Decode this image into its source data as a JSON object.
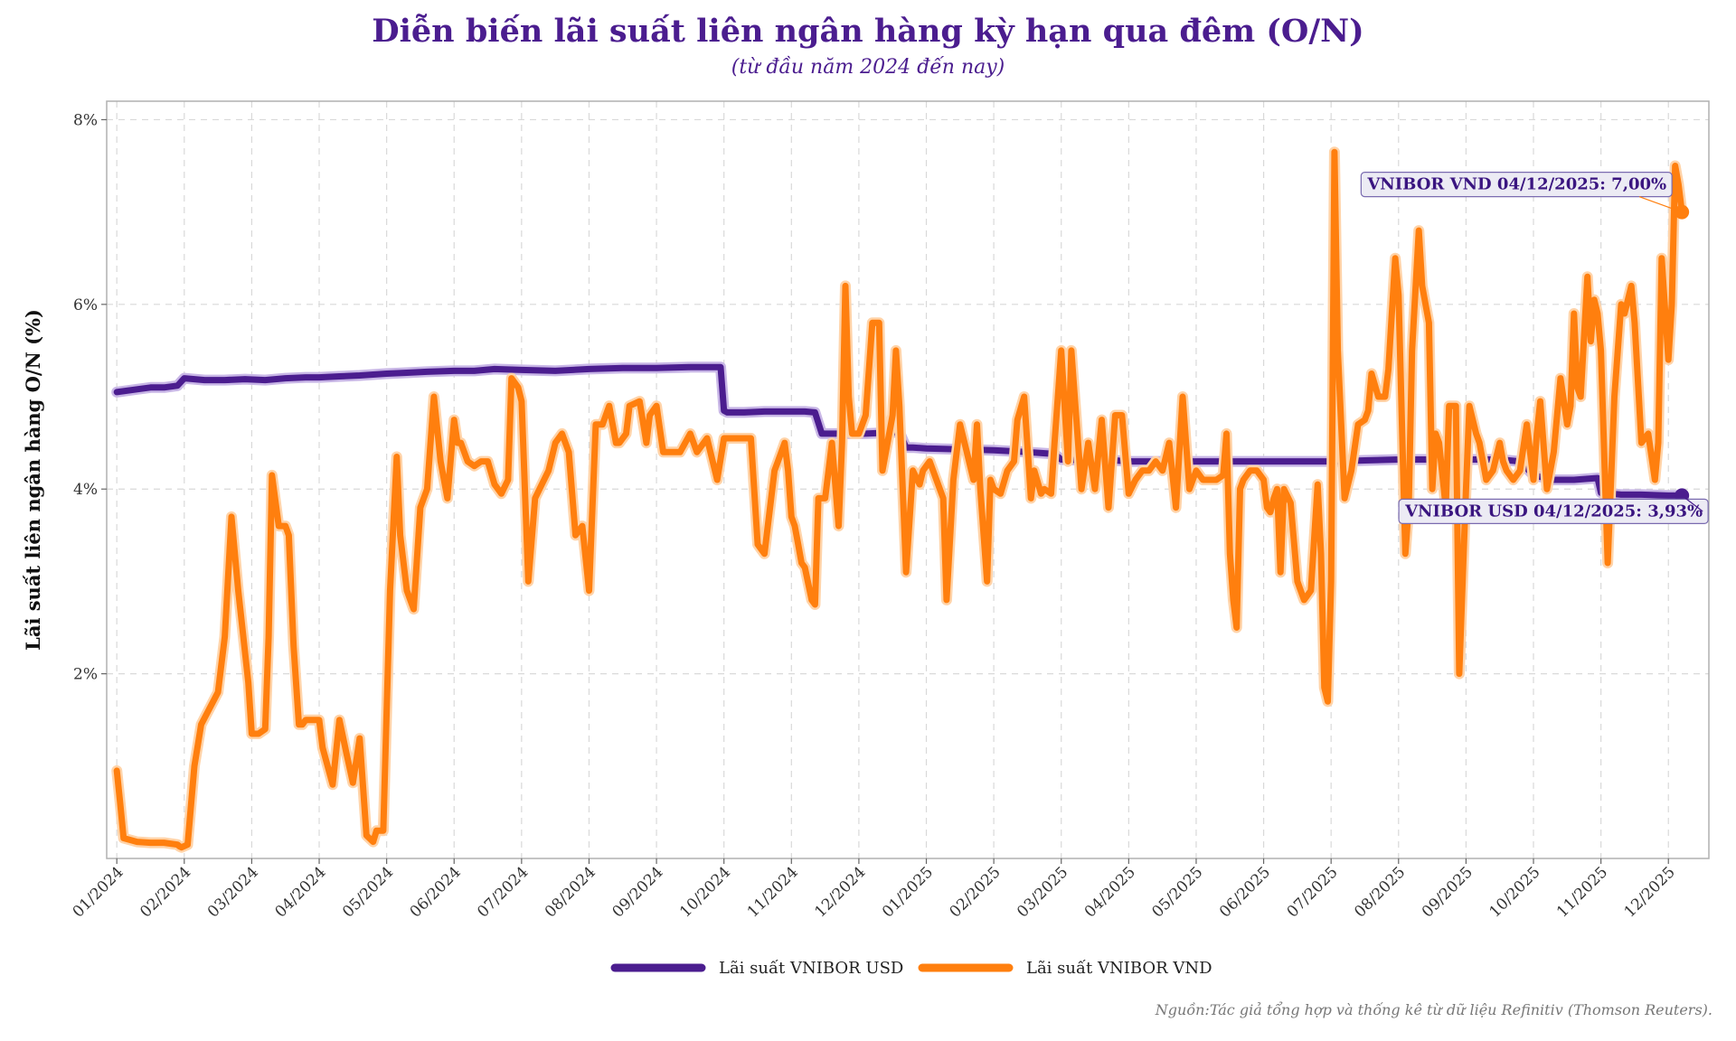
{
  "title": "Diễn biến lãi suất liên ngân hàng kỳ hạn qua đêm (O/N)",
  "subtitle": "(từ đầu năm 2024 đến nay)",
  "source": "Nguồn:Tác giả tổng hợp và thống kê từ dữ liệu Refinitiv (Thomson Reuters).",
  "colors": {
    "usd": "#4b1d8f",
    "vnd": "#ff7f0e",
    "usd_halo": "#c8b6e6",
    "vnd_halo": "#ffd3a8",
    "grid": "#d9d9d9",
    "frame": "#b0b0b0"
  },
  "chart_data": {
    "type": "line",
    "title": "Diễn biến lãi suất liên ngân hàng kỳ hạn qua đêm (O/N)",
    "xlabel": "",
    "ylabel": "Lãi suất liên ngân hàng O/N (%)",
    "ylim": [
      0,
      8.2
    ],
    "yticks": [
      2,
      4,
      6,
      8
    ],
    "ytick_labels": [
      "2%",
      "4%",
      "6%",
      "8%"
    ],
    "x_unit": "month index from 01/2024 (0 = 01/2024)",
    "xlim": [
      -0.15,
      23.6
    ],
    "xticks": [
      0,
      1,
      2,
      3,
      4,
      5,
      6,
      7,
      8,
      9,
      10,
      11,
      12,
      13,
      14,
      15,
      16,
      17,
      18,
      19,
      20,
      21,
      22,
      23
    ],
    "xtick_labels": [
      "01/2024",
      "02/2024",
      "03/2024",
      "04/2024",
      "05/2024",
      "06/2024",
      "07/2024",
      "08/2024",
      "09/2024",
      "10/2024",
      "11/2024",
      "12/2024",
      "01/2025",
      "02/2025",
      "03/2025",
      "04/2025",
      "05/2025",
      "06/2025",
      "07/2025",
      "08/2025",
      "09/2025",
      "10/2025",
      "11/2025",
      "12/2025"
    ],
    "grid": true,
    "legend_position": "bottom-center",
    "series": [
      {
        "name": "Lãi suất VNIBOR USD",
        "color": "#4b1d8f",
        "x": [
          0,
          0.3,
          0.5,
          0.7,
          0.9,
          1.0,
          1.3,
          1.6,
          1.9,
          2.2,
          2.5,
          2.8,
          3.0,
          3.3,
          3.6,
          4.0,
          4.3,
          4.6,
          5.0,
          5.3,
          5.6,
          6.0,
          6.5,
          7.0,
          7.5,
          8.0,
          8.5,
          8.95,
          9.0,
          9.05,
          9.3,
          9.6,
          9.9,
          10.2,
          10.35,
          10.45,
          10.5,
          10.8,
          11.1,
          11.4,
          11.6,
          11.7,
          11.8,
          12.0,
          12.5,
          13.0,
          13.5,
          13.9,
          14.0,
          14.4,
          14.8,
          15.0,
          15.4,
          15.8,
          16.2,
          16.6,
          17.0,
          17.5,
          18.0,
          18.5,
          19.0,
          19.5,
          20.0,
          20.5,
          20.8,
          21.0,
          21.3,
          21.6,
          21.95,
          22.0,
          22.3,
          22.6,
          23.0,
          23.2
        ],
        "values": [
          5.05,
          5.08,
          5.1,
          5.1,
          5.12,
          5.2,
          5.18,
          5.18,
          5.19,
          5.18,
          5.2,
          5.21,
          5.21,
          5.22,
          5.23,
          5.25,
          5.26,
          5.27,
          5.28,
          5.28,
          5.3,
          5.29,
          5.28,
          5.3,
          5.31,
          5.31,
          5.32,
          5.32,
          4.85,
          4.83,
          4.83,
          4.84,
          4.84,
          4.84,
          4.83,
          4.6,
          4.6,
          4.6,
          4.6,
          4.61,
          4.62,
          4.45,
          4.45,
          4.44,
          4.43,
          4.42,
          4.4,
          4.38,
          4.32,
          4.31,
          4.31,
          4.3,
          4.3,
          4.3,
          4.3,
          4.3,
          4.3,
          4.3,
          4.3,
          4.31,
          4.32,
          4.32,
          4.32,
          4.32,
          4.3,
          4.15,
          4.1,
          4.1,
          4.12,
          3.96,
          3.94,
          3.94,
          3.93,
          3.93
        ]
      },
      {
        "name": "Lãi suất VNIBOR VND",
        "color": "#ff7f0e",
        "x": [
          0,
          0.05,
          0.1,
          0.3,
          0.5,
          0.7,
          0.9,
          0.93,
          0.96,
          1.05,
          1.15,
          1.25,
          1.5,
          1.6,
          1.7,
          1.8,
          1.95,
          2.0,
          2.1,
          2.2,
          2.25,
          2.3,
          2.4,
          2.5,
          2.55,
          2.62,
          2.7,
          2.75,
          2.8,
          2.9,
          3.0,
          3.05,
          3.2,
          3.3,
          3.4,
          3.5,
          3.6,
          3.7,
          3.8,
          3.85,
          3.95,
          4.05,
          4.15,
          4.2,
          4.3,
          4.4,
          4.5,
          4.6,
          4.7,
          4.8,
          4.9,
          5.0,
          5.05,
          5.1,
          5.2,
          5.3,
          5.4,
          5.5,
          5.6,
          5.7,
          5.8,
          5.85,
          5.95,
          6.0,
          6.1,
          6.2,
          6.3,
          6.4,
          6.5,
          6.6,
          6.7,
          6.8,
          6.9,
          7.0,
          7.1,
          7.2,
          7.3,
          7.4,
          7.45,
          7.55,
          7.6,
          7.75,
          7.85,
          7.9,
          8.0,
          8.1,
          8.25,
          8.35,
          8.5,
          8.6,
          8.75,
          8.9,
          9.0,
          9.1,
          9.3,
          9.4,
          9.5,
          9.6,
          9.65,
          9.75,
          9.8,
          9.9,
          9.95,
          10.0,
          10.05,
          10.1,
          10.15,
          10.2,
          10.3,
          10.35,
          10.4,
          10.5,
          10.6,
          10.7,
          10.75,
          10.8,
          10.85,
          10.9,
          10.95,
          11.0,
          11.1,
          11.2,
          11.3,
          11.35,
          11.5,
          11.55,
          11.6,
          11.7,
          11.8,
          11.9,
          11.95,
          12.05,
          12.15,
          12.25,
          12.3,
          12.4,
          12.5,
          12.6,
          12.7,
          12.75,
          12.8,
          12.9,
          12.95,
          13.0,
          13.1,
          13.2,
          13.3,
          13.35,
          13.45,
          13.55,
          13.6,
          13.7,
          13.75,
          13.85,
          13.9,
          14.0,
          14.1,
          14.15,
          14.3,
          14.4,
          14.5,
          14.6,
          14.7,
          14.8,
          14.9,
          15.0,
          15.1,
          15.2,
          15.3,
          15.4,
          15.5,
          15.6,
          15.7,
          15.8,
          15.9,
          16.0,
          16.1,
          16.2,
          16.3,
          16.4,
          16.45,
          16.5,
          16.55,
          16.6,
          16.65,
          16.7,
          16.8,
          16.9,
          17.0,
          17.05,
          17.1,
          17.15,
          17.2,
          17.25,
          17.3,
          17.4,
          17.5,
          17.6,
          17.7,
          17.8,
          17.85,
          17.9,
          17.95,
          18.0,
          18.05,
          18.1,
          18.2,
          18.3,
          18.4,
          18.5,
          18.55,
          18.6,
          18.7,
          18.8,
          18.85,
          18.95,
          19.0,
          19.1,
          19.15,
          19.2,
          19.3,
          19.35,
          19.45,
          19.5,
          19.55,
          19.6,
          19.7,
          19.75,
          19.85,
          19.9,
          20.0,
          20.05,
          20.15,
          20.2,
          20.3,
          20.4,
          20.5,
          20.55,
          20.6,
          20.7,
          20.8,
          20.9,
          21.0,
          21.05,
          21.1,
          21.2,
          21.3,
          21.4,
          21.5,
          21.55,
          21.6,
          21.65,
          21.7,
          21.8,
          21.85,
          21.9,
          21.95,
          22.0,
          22.1,
          22.2,
          22.3,
          22.35,
          22.45,
          22.5,
          22.6,
          22.7,
          22.8,
          22.85,
          22.9,
          23.0,
          23.05,
          23.1,
          23.15,
          23.2
        ],
        "values": [
          0.95,
          0.6,
          0.22,
          0.18,
          0.17,
          0.17,
          0.15,
          0.13,
          0.12,
          0.15,
          1.0,
          1.45,
          1.8,
          2.4,
          3.7,
          2.9,
          1.9,
          1.35,
          1.35,
          1.4,
          2.4,
          4.15,
          3.6,
          3.6,
          3.5,
          2.3,
          1.45,
          1.45,
          1.5,
          1.5,
          1.5,
          1.2,
          0.8,
          1.5,
          1.15,
          0.82,
          1.3,
          0.25,
          0.18,
          0.3,
          0.3,
          2.9,
          4.35,
          3.5,
          2.9,
          2.7,
          3.8,
          4.0,
          5.0,
          4.3,
          3.9,
          4.75,
          4.5,
          4.5,
          4.3,
          4.25,
          4.3,
          4.3,
          4.05,
          3.95,
          4.1,
          5.2,
          5.1,
          4.95,
          3.0,
          3.9,
          4.05,
          4.2,
          4.5,
          4.6,
          4.4,
          3.5,
          3.6,
          2.9,
          4.7,
          4.7,
          4.9,
          4.5,
          4.5,
          4.6,
          4.9,
          4.95,
          4.5,
          4.8,
          4.9,
          4.4,
          4.4,
          4.4,
          4.6,
          4.4,
          4.55,
          4.1,
          4.55,
          4.55,
          4.55,
          4.55,
          3.4,
          3.3,
          3.6,
          4.2,
          4.3,
          4.5,
          4.2,
          3.7,
          3.6,
          3.4,
          3.2,
          3.15,
          2.8,
          2.75,
          3.9,
          3.9,
          4.5,
          3.6,
          4.5,
          6.2,
          5.0,
          4.6,
          4.6,
          4.6,
          4.8,
          5.8,
          5.8,
          4.2,
          4.8,
          5.5,
          4.9,
          3.1,
          4.2,
          4.05,
          4.2,
          4.3,
          4.1,
          3.9,
          2.8,
          4.1,
          4.7,
          4.4,
          4.1,
          4.7,
          4.0,
          3.0,
          4.1,
          4.0,
          3.95,
          4.2,
          4.3,
          4.75,
          5.0,
          3.9,
          4.2,
          3.95,
          4.0,
          3.95,
          4.5,
          5.5,
          4.3,
          5.5,
          4.0,
          4.5,
          4.0,
          4.75,
          3.8,
          4.8,
          4.8,
          3.95,
          4.1,
          4.2,
          4.2,
          4.3,
          4.2,
          4.5,
          3.8,
          5.0,
          4.0,
          4.2,
          4.1,
          4.1,
          4.1,
          4.15,
          4.6,
          3.3,
          2.8,
          2.5,
          4.0,
          4.1,
          4.2,
          4.2,
          4.1,
          3.8,
          3.75,
          3.9,
          4.0,
          3.1,
          4.0,
          3.85,
          3.0,
          2.8,
          2.9,
          4.05,
          3.3,
          1.85,
          1.7,
          3.0,
          7.65,
          5.5,
          3.9,
          4.2,
          4.7,
          4.75,
          4.85,
          5.25,
          5.0,
          5.0,
          5.3,
          6.5,
          6.1,
          3.3,
          3.8,
          5.5,
          6.8,
          6.2,
          5.8,
          4.0,
          4.6,
          4.5,
          3.8,
          4.9,
          4.9,
          2.0,
          4.0,
          4.9,
          4.6,
          4.5,
          4.1,
          4.2,
          4.5,
          4.3,
          4.2,
          4.1,
          4.2,
          4.7,
          4.1,
          4.6,
          4.95,
          4.0,
          4.4,
          5.2,
          4.7,
          4.9,
          5.9,
          5.1,
          5.0,
          6.3,
          5.6,
          6.05,
          5.9,
          5.5,
          3.2,
          5.0,
          6.0,
          5.9,
          6.2,
          5.8,
          4.5,
          4.6,
          4.1,
          4.5,
          6.5,
          5.4,
          6.0,
          7.5,
          7.3,
          7.0
        ]
      }
    ],
    "annotations": [
      {
        "text": "VNIBOR VND 04/12/2025: 7,00%",
        "series": "Lãi suất VNIBOR VND",
        "x": 23.2,
        "y": 7.0
      },
      {
        "text": "VNIBOR USD 04/12/2025: 3,93%",
        "series": "Lãi suất VNIBOR USD",
        "x": 23.2,
        "y": 3.93
      }
    ]
  }
}
